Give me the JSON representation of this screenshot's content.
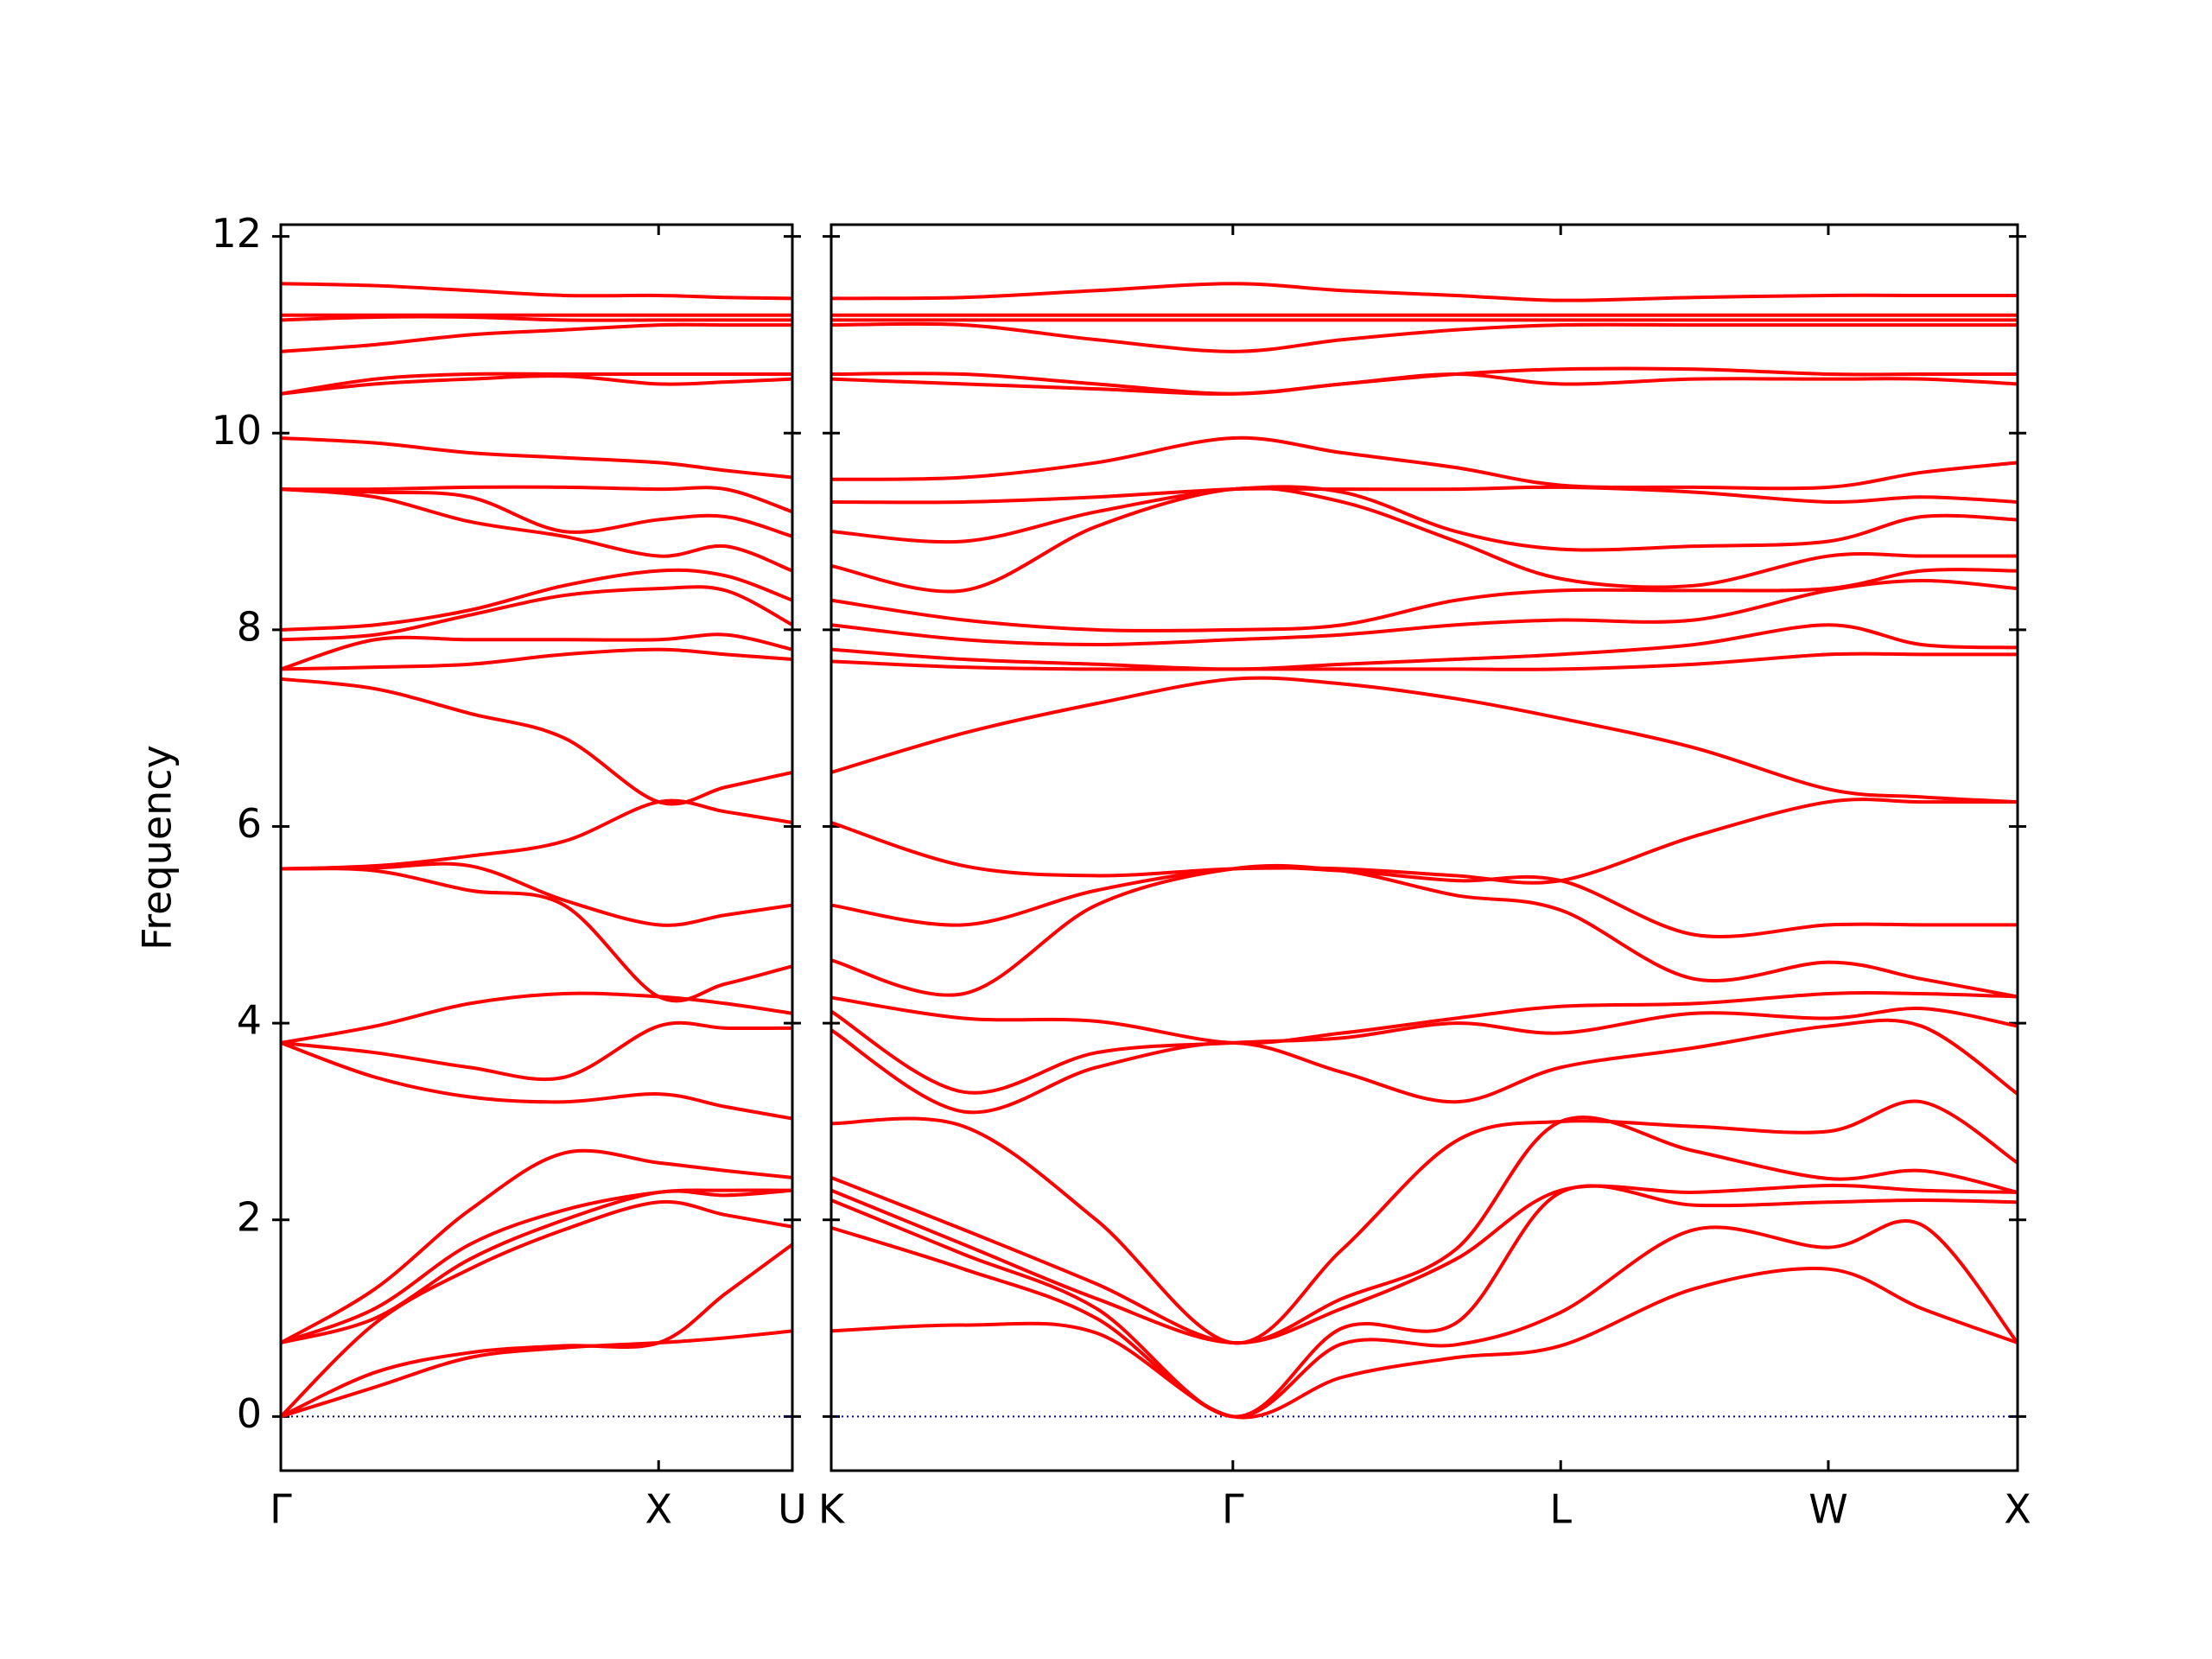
{
  "chart_data": [
    {
      "type": "line",
      "ylabel": "Frequency",
      "color": "#ff0000",
      "xlim": [
        0,
        1.354
      ],
      "ylim": [
        -0.55,
        12.12
      ],
      "yticks": [
        0,
        2,
        4,
        6,
        8,
        10,
        12
      ],
      "xticks": [
        {
          "value": 0,
          "label": "Γ"
        },
        {
          "value": 1.0,
          "label": "X"
        },
        {
          "value": 1.354,
          "label": "U"
        }
      ],
      "hline": 0,
      "hline_color": "#00008b",
      "x": [
        0,
        0.25,
        0.5,
        0.75,
        1.0,
        1.177,
        1.354
      ],
      "series": [
        {
          "values": [
            0,
            0.3,
            0.6,
            0.7,
            0.75,
            0.8,
            0.87
          ]
        },
        {
          "values": [
            0,
            0.45,
            0.65,
            0.72,
            0.75,
            1.25,
            1.75
          ]
        },
        {
          "values": [
            0,
            0.95,
            1.5,
            1.9,
            2.18,
            2.05,
            1.93
          ]
        },
        {
          "values": [
            0.75,
            1.0,
            1.6,
            2.0,
            2.28,
            2.25,
            2.3
          ]
        },
        {
          "values": [
            0.75,
            1.1,
            1.75,
            2.1,
            2.28,
            2.3,
            2.3
          ]
        },
        {
          "values": [
            0.75,
            1.3,
            2.1,
            2.68,
            2.58,
            2.5,
            2.43
          ]
        },
        {
          "values": [
            3.8,
            3.45,
            3.25,
            3.2,
            3.28,
            3.15,
            3.03
          ]
        },
        {
          "values": [
            3.8,
            3.7,
            3.55,
            3.45,
            3.97,
            3.95,
            3.95
          ]
        },
        {
          "values": [
            3.8,
            3.97,
            4.2,
            4.3,
            4.27,
            4.2,
            4.1
          ]
        },
        {
          "values": [
            5.57,
            5.55,
            5.35,
            5.2,
            4.27,
            4.4,
            4.58
          ]
        },
        {
          "values": [
            5.57,
            5.58,
            5.6,
            5.25,
            5.0,
            5.1,
            5.2
          ]
        },
        {
          "values": [
            5.57,
            5.6,
            5.7,
            5.85,
            6.25,
            6.15,
            6.04
          ]
        },
        {
          "values": [
            7.5,
            7.4,
            7.15,
            6.9,
            6.25,
            6.4,
            6.55
          ]
        },
        {
          "values": [
            7.6,
            7.62,
            7.65,
            7.75,
            7.8,
            7.75,
            7.7
          ]
        },
        {
          "values": [
            7.6,
            7.9,
            7.9,
            7.9,
            7.9,
            7.95,
            7.8
          ]
        },
        {
          "values": [
            7.9,
            7.95,
            8.15,
            8.35,
            8.42,
            8.4,
            8.05
          ]
        },
        {
          "values": [
            8.0,
            8.05,
            8.2,
            8.45,
            8.6,
            8.55,
            8.3
          ]
        },
        {
          "values": [
            9.43,
            9.35,
            9.1,
            8.95,
            8.75,
            8.85,
            8.6
          ]
        },
        {
          "values": [
            9.43,
            9.4,
            9.35,
            9.0,
            9.12,
            9.15,
            8.95
          ]
        },
        {
          "values": [
            9.43,
            9.43,
            9.45,
            9.45,
            9.43,
            9.43,
            9.2
          ]
        },
        {
          "values": [
            9.95,
            9.9,
            9.8,
            9.75,
            9.7,
            9.62,
            9.55
          ]
        },
        {
          "values": [
            10.4,
            10.5,
            10.55,
            10.58,
            10.5,
            10.52,
            10.55
          ]
        },
        {
          "values": [
            10.4,
            10.55,
            10.6,
            10.6,
            10.6,
            10.6,
            10.6
          ]
        },
        {
          "values": [
            10.83,
            10.9,
            11.0,
            11.05,
            11.1,
            11.1,
            11.1
          ]
        },
        {
          "values": [
            11.15,
            11.18,
            11.18,
            11.15,
            11.15,
            11.15,
            11.15
          ]
        },
        {
          "values": [
            11.2,
            11.2,
            11.2,
            11.2,
            11.2,
            11.2,
            11.2
          ]
        },
        {
          "values": [
            11.52,
            11.5,
            11.45,
            11.4,
            11.4,
            11.38,
            11.37
          ]
        }
      ]
    },
    {
      "type": "line",
      "color": "#ff0000",
      "xlim": [
        0,
        3.134
      ],
      "ylim": [
        -0.55,
        12.12
      ],
      "xticks": [
        {
          "value": 0,
          "label": "K"
        },
        {
          "value": 1.061,
          "label": "Γ"
        },
        {
          "value": 1.927,
          "label": "L"
        },
        {
          "value": 2.634,
          "label": "W"
        },
        {
          "value": 3.134,
          "label": "X"
        }
      ],
      "hline": 0,
      "hline_color": "#00008b",
      "x": [
        0,
        0.35,
        0.7,
        1.061,
        1.35,
        1.65,
        1.927,
        2.28,
        2.634,
        2.88,
        3.134
      ],
      "series": [
        {
          "values": [
            0.87,
            0.93,
            0.85,
            0,
            0.4,
            0.6,
            0.72,
            1.3,
            1.5,
            1.1,
            0.75
          ]
        },
        {
          "values": [
            1.92,
            1.5,
            1.0,
            0,
            0.74,
            0.73,
            1.06,
            1.9,
            1.72,
            1.95,
            0.75
          ]
        },
        {
          "values": [
            2.2,
            1.65,
            1.1,
            0,
            0.9,
            0.95,
            2.28,
            2.15,
            2.18,
            2.2,
            2.18
          ]
        },
        {
          "values": [
            2.3,
            1.75,
            1.2,
            0.75,
            1.1,
            1.6,
            2.3,
            2.28,
            2.35,
            2.3,
            2.28
          ]
        },
        {
          "values": [
            2.43,
            1.9,
            1.35,
            0.75,
            1.2,
            1.7,
            3.0,
            2.7,
            2.42,
            2.5,
            2.28
          ]
        },
        {
          "values": [
            2.98,
            2.95,
            2.0,
            0.75,
            1.7,
            2.8,
            3.0,
            2.95,
            2.9,
            3.2,
            2.58
          ]
        },
        {
          "values": [
            3.93,
            3.1,
            3.55,
            3.8,
            3.5,
            3.2,
            3.55,
            3.75,
            3.97,
            3.97,
            3.28
          ]
        },
        {
          "values": [
            4.12,
            3.3,
            3.7,
            3.8,
            3.85,
            4.0,
            3.9,
            4.1,
            4.05,
            4.15,
            3.97
          ]
        },
        {
          "values": [
            4.26,
            4.05,
            4.02,
            3.8,
            3.9,
            4.05,
            4.17,
            4.2,
            4.3,
            4.3,
            4.27
          ]
        },
        {
          "values": [
            4.64,
            4.3,
            5.2,
            5.57,
            5.55,
            5.3,
            5.15,
            4.45,
            4.62,
            4.45,
            4.27
          ]
        },
        {
          "values": [
            5.2,
            5.0,
            5.35,
            5.57,
            5.55,
            5.45,
            5.45,
            4.9,
            5.0,
            5.0,
            5.0
          ]
        },
        {
          "values": [
            6.04,
            5.6,
            5.5,
            5.57,
            5.57,
            5.5,
            5.45,
            5.9,
            6.25,
            6.25,
            6.25
          ]
        },
        {
          "values": [
            6.55,
            6.95,
            7.25,
            7.5,
            7.45,
            7.3,
            7.1,
            6.8,
            6.38,
            6.3,
            6.25
          ]
        },
        {
          "values": [
            7.68,
            7.62,
            7.6,
            7.6,
            7.6,
            7.6,
            7.6,
            7.65,
            7.75,
            7.75,
            7.75
          ]
        },
        {
          "values": [
            7.8,
            7.7,
            7.65,
            7.6,
            7.65,
            7.7,
            7.75,
            7.85,
            8.05,
            7.85,
            7.82
          ]
        },
        {
          "values": [
            8.05,
            7.9,
            7.85,
            7.9,
            7.95,
            8.05,
            8.1,
            8.1,
            8.4,
            8.5,
            8.42
          ]
        },
        {
          "values": [
            8.3,
            8.1,
            8.0,
            8.0,
            8.05,
            8.3,
            8.4,
            8.4,
            8.42,
            8.6,
            8.6
          ]
        },
        {
          "values": [
            8.65,
            8.4,
            9.05,
            9.43,
            9.3,
            8.9,
            8.52,
            8.45,
            8.75,
            8.75,
            8.75
          ]
        },
        {
          "values": [
            9.0,
            8.9,
            9.2,
            9.43,
            9.4,
            9.0,
            8.82,
            8.85,
            8.9,
            9.15,
            9.12
          ]
        },
        {
          "values": [
            9.3,
            9.3,
            9.35,
            9.43,
            9.43,
            9.43,
            9.45,
            9.4,
            9.3,
            9.35,
            9.3
          ]
        },
        {
          "values": [
            9.53,
            9.55,
            9.7,
            9.95,
            9.8,
            9.65,
            9.47,
            9.45,
            9.45,
            9.6,
            9.7
          ]
        },
        {
          "values": [
            10.55,
            10.5,
            10.45,
            10.4,
            10.5,
            10.6,
            10.5,
            10.55,
            10.55,
            10.55,
            10.5
          ]
        },
        {
          "values": [
            10.6,
            10.6,
            10.5,
            10.4,
            10.5,
            10.6,
            10.65,
            10.65,
            10.6,
            10.6,
            10.6
          ]
        },
        {
          "values": [
            11.1,
            11.1,
            10.95,
            10.83,
            10.95,
            11.05,
            11.1,
            11.1,
            11.1,
            11.1,
            11.1
          ]
        },
        {
          "values": [
            11.15,
            11.15,
            11.15,
            11.15,
            11.15,
            11.15,
            11.15,
            11.15,
            11.15,
            11.15,
            11.15
          ]
        },
        {
          "values": [
            11.2,
            11.2,
            11.2,
            11.2,
            11.2,
            11.2,
            11.2,
            11.2,
            11.2,
            11.2,
            11.2
          ]
        },
        {
          "values": [
            11.37,
            11.38,
            11.45,
            11.52,
            11.45,
            11.4,
            11.35,
            11.38,
            11.4,
            11.4,
            11.4
          ]
        }
      ]
    }
  ]
}
